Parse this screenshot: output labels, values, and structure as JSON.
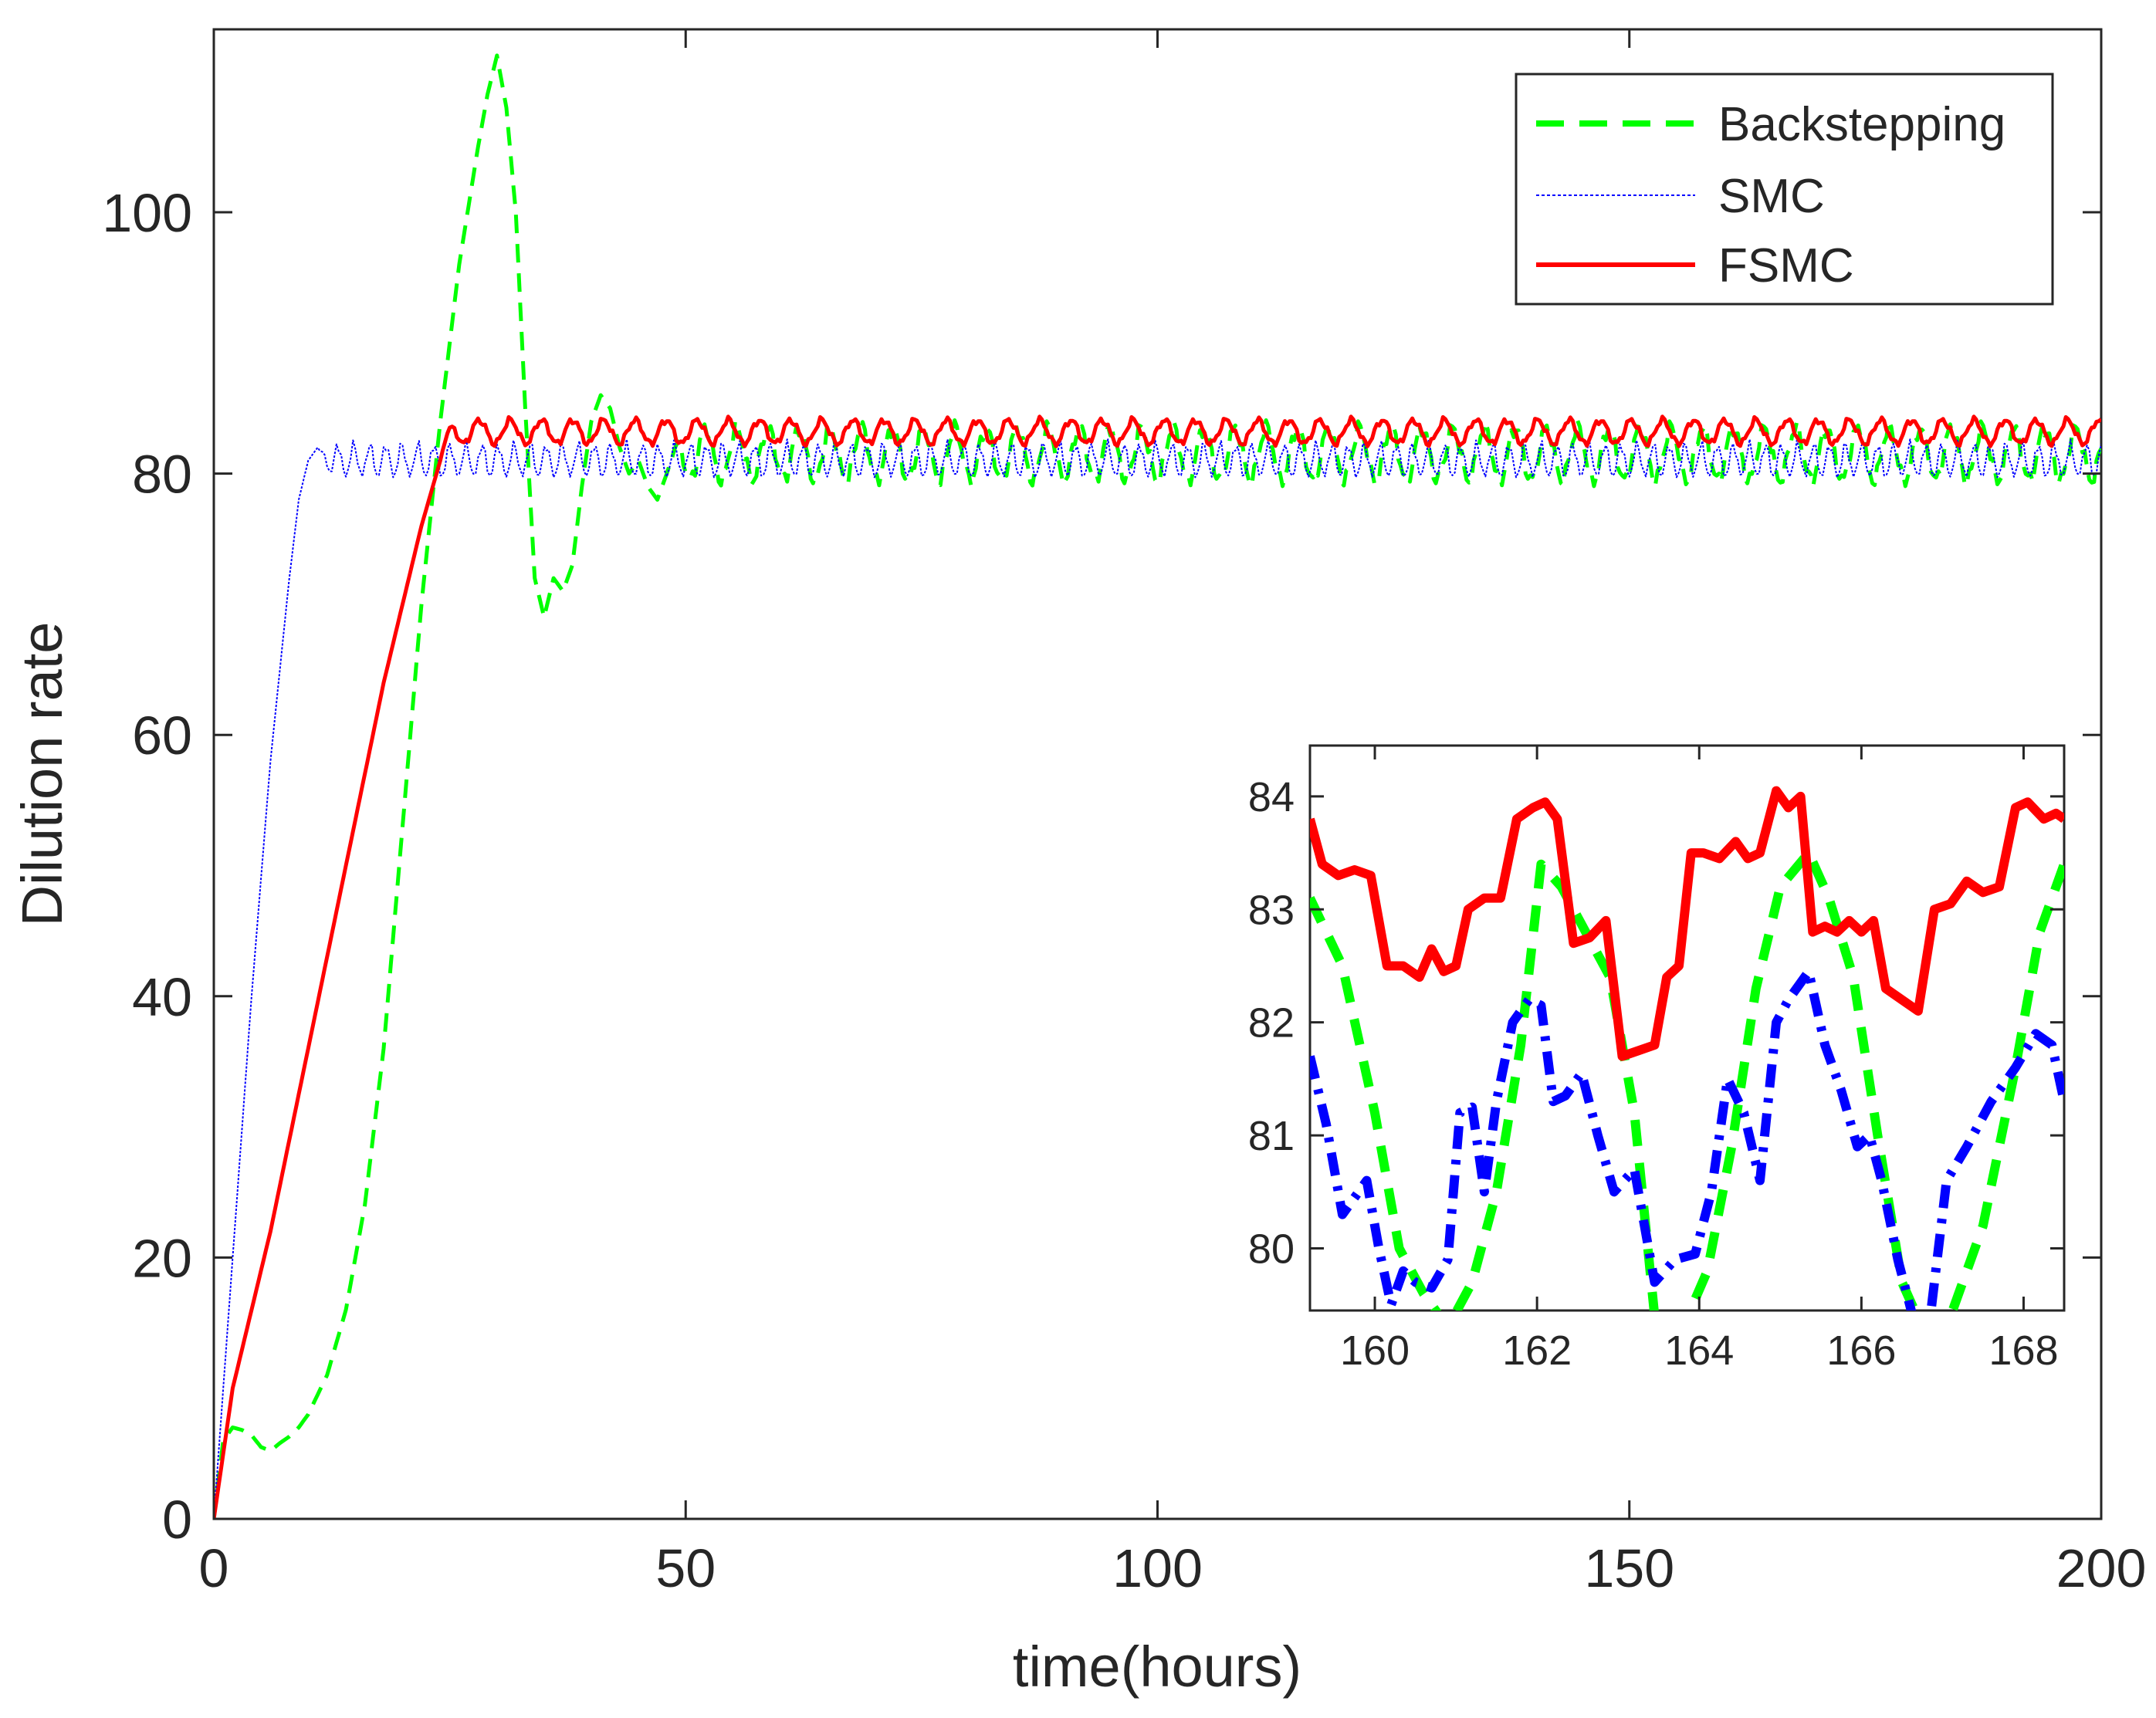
{
  "chart_data": [
    {
      "type": "line",
      "title": "",
      "xlabel": "time(hours)",
      "ylabel": "Dilution rate",
      "xlim": [
        0,
        200
      ],
      "ylim": [
        0,
        114
      ],
      "xticks": [
        0,
        50,
        100,
        150,
        200
      ],
      "yticks": [
        0,
        20,
        40,
        60,
        80,
        100
      ],
      "grid": false,
      "legend_location": "top-right",
      "legend": [
        "Backstepping",
        "SMC",
        "FSMC"
      ],
      "series": [
        {
          "name": "Backstepping",
          "color": "#00ff00",
          "style": "dashed",
          "x": [
            0,
            1,
            2,
            3,
            4,
            5,
            6,
            7,
            8,
            9,
            10,
            12,
            14,
            16,
            18,
            20,
            22,
            24,
            26,
            28,
            29,
            30,
            31,
            32,
            33,
            34,
            35,
            36,
            37,
            38,
            39,
            40,
            41,
            42,
            43,
            44,
            45,
            46,
            47,
            48,
            49,
            50,
            60,
            70,
            80,
            90,
            100,
            110,
            120,
            130,
            140,
            150,
            160,
            170,
            180,
            190,
            200
          ],
          "values": [
            0,
            6,
            7,
            6.8,
            6.4,
            5.5,
            5.2,
            5.8,
            6.3,
            7,
            8,
            11,
            16,
            24,
            36,
            53,
            70,
            84,
            96,
            105,
            109,
            112,
            108,
            100,
            85,
            72,
            69,
            72,
            71,
            73,
            79,
            84,
            86,
            85,
            82,
            80,
            81,
            79,
            78,
            80,
            81,
            82,
            81.5,
            81.5,
            81.5,
            81.5,
            81.5,
            81.5,
            81.5,
            81.5,
            81.5,
            81.5,
            81.5,
            81.5,
            81.5,
            81.5,
            81.5
          ],
          "steady_oscillation": {
            "from": 48,
            "center": 81.5,
            "amplitude": 2,
            "period_hours": 3.3
          }
        },
        {
          "name": "SMC",
          "color": "#0000ff",
          "style": "dotted",
          "x": [
            0,
            2,
            4,
            6,
            8,
            9,
            10,
            11,
            12,
            13,
            14,
            15,
            16,
            17,
            18,
            20,
            22,
            24,
            26,
            30,
            40,
            50,
            100,
            150,
            200
          ],
          "values": [
            0,
            20,
            40,
            58,
            72,
            78,
            81,
            82,
            81,
            80,
            82,
            81,
            80,
            82,
            81,
            81,
            80.5,
            81,
            81,
            81,
            81,
            81,
            81,
            81,
            81
          ],
          "steady_oscillation": {
            "from": 11,
            "center": 81,
            "amplitude": 1.2,
            "period_hours": 1.7
          }
        },
        {
          "name": "FSMC",
          "color": "#ff0000",
          "style": "solid",
          "x": [
            0,
            2,
            4,
            6,
            8,
            10,
            12,
            14,
            16,
            18,
            20,
            22,
            24,
            25,
            30,
            50,
            100,
            150,
            200
          ],
          "values": [
            0,
            10,
            16,
            22,
            29,
            36,
            43,
            50,
            57,
            64,
            70,
            76,
            81,
            83,
            83,
            83,
            83,
            83,
            83
          ],
          "steady_oscillation": {
            "from": 24,
            "center": 83.2,
            "amplitude": 0.9,
            "period_hours": 3.3
          }
        }
      ]
    },
    {
      "type": "line",
      "title": "",
      "xlabel": "",
      "ylabel": "",
      "xlim": [
        159.2,
        168.5
      ],
      "ylim": [
        79.45,
        84.45
      ],
      "xticks": [
        160,
        162,
        164,
        166,
        168
      ],
      "yticks": [
        80,
        81,
        82,
        83,
        84
      ],
      "grid": false,
      "series": [
        {
          "name": "Backstepping",
          "color": "#00ff00",
          "style": "dashed",
          "x": [
            159.2,
            159.6,
            160.0,
            160.3,
            160.6,
            160.9,
            161.2,
            161.5,
            161.8,
            162.05,
            162.3,
            162.6,
            162.9,
            163.2,
            163.45,
            163.8,
            164.1,
            164.4,
            164.7,
            165.0,
            165.35,
            165.6,
            165.9,
            166.2,
            166.5,
            166.75,
            167.1,
            167.5,
            167.9,
            168.2,
            168.5
          ],
          "values": [
            83.1,
            82.5,
            81.2,
            80.0,
            79.6,
            79.3,
            79.7,
            80.5,
            81.8,
            83.4,
            83.2,
            82.8,
            82.4,
            81.2,
            79.4,
            79.3,
            79.8,
            80.9,
            82.3,
            83.2,
            83.5,
            83.1,
            82.4,
            81.0,
            79.7,
            79.3,
            79.4,
            80.2,
            81.6,
            82.8,
            83.4
          ]
        },
        {
          "name": "SMC",
          "color": "#0000ff",
          "style": "dashdot",
          "x": [
            159.2,
            159.4,
            159.6,
            159.75,
            159.9,
            160.05,
            160.2,
            160.35,
            160.5,
            160.7,
            160.9,
            161.05,
            161.2,
            161.35,
            161.5,
            161.7,
            161.9,
            162.05,
            162.2,
            162.35,
            162.55,
            162.75,
            162.95,
            163.2,
            163.45,
            163.7,
            163.95,
            164.15,
            164.35,
            164.55,
            164.75,
            164.95,
            165.1,
            165.35,
            165.55,
            165.75,
            165.95,
            166.1,
            166.25,
            166.45,
            166.65,
            166.85,
            167.05,
            167.3,
            167.6,
            167.9,
            168.15,
            168.35,
            168.5
          ],
          "values": [
            81.7,
            81.1,
            80.3,
            80.45,
            80.6,
            80.0,
            79.5,
            79.8,
            79.7,
            79.65,
            79.9,
            81.2,
            81.25,
            80.5,
            81.3,
            82.0,
            82.2,
            82.15,
            81.3,
            81.35,
            81.55,
            81.0,
            80.5,
            80.7,
            79.7,
            79.9,
            79.95,
            80.5,
            81.5,
            81.2,
            80.6,
            82.0,
            82.2,
            82.45,
            81.8,
            81.4,
            80.9,
            81.0,
            80.6,
            79.9,
            79.35,
            79.4,
            80.6,
            80.9,
            81.3,
            81.6,
            81.9,
            81.8,
            81.3
          ]
        },
        {
          "name": "FSMC",
          "color": "#ff0000",
          "style": "solid",
          "x": [
            159.2,
            159.35,
            159.55,
            159.75,
            159.95,
            160.15,
            160.35,
            160.55,
            160.7,
            160.85,
            161.0,
            161.15,
            161.35,
            161.55,
            161.75,
            161.95,
            162.1,
            162.25,
            162.45,
            162.65,
            162.85,
            163.05,
            163.25,
            163.45,
            163.6,
            163.75,
            163.9,
            164.05,
            164.25,
            164.45,
            164.6,
            164.75,
            164.95,
            165.1,
            165.25,
            165.4,
            165.55,
            165.7,
            165.85,
            166.0,
            166.15,
            166.3,
            166.5,
            166.7,
            166.9,
            167.1,
            167.3,
            167.5,
            167.7,
            167.9,
            168.05,
            168.25,
            168.4,
            168.5
          ],
          "values": [
            83.8,
            83.4,
            83.3,
            83.35,
            83.3,
            82.5,
            82.5,
            82.4,
            82.65,
            82.45,
            82.5,
            83.0,
            83.1,
            83.1,
            83.8,
            83.9,
            83.95,
            83.8,
            82.7,
            82.75,
            82.9,
            81.7,
            81.75,
            81.8,
            82.4,
            82.5,
            83.5,
            83.5,
            83.45,
            83.6,
            83.45,
            83.5,
            84.05,
            83.9,
            84.0,
            82.8,
            82.85,
            82.8,
            82.9,
            82.8,
            82.9,
            82.3,
            82.2,
            82.1,
            83.0,
            83.05,
            83.25,
            83.15,
            83.2,
            83.9,
            83.95,
            83.8,
            83.85,
            83.8
          ]
        }
      ]
    }
  ]
}
